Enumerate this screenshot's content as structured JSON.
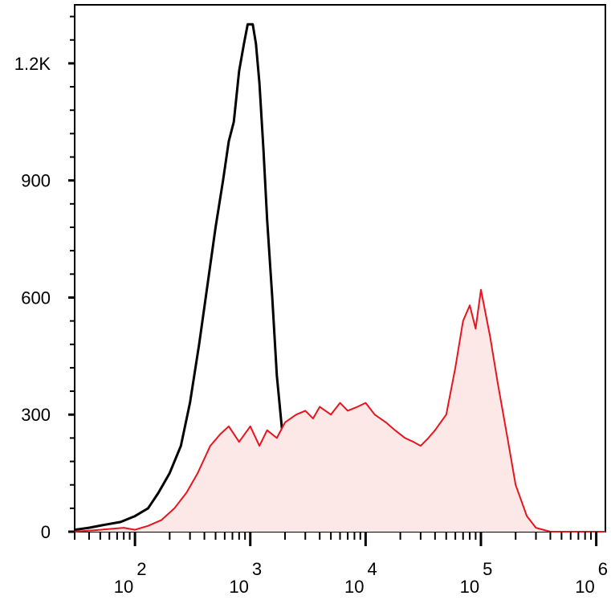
{
  "chart_data": {
    "type": "area",
    "title": "",
    "xlabel": "",
    "ylabel": "",
    "x_scale": "log",
    "xlim": [
      30,
      1200000
    ],
    "ylim": [
      0,
      1350
    ],
    "x_tick_labels": [
      {
        "base": "10",
        "exp": "2",
        "value": 100
      },
      {
        "base": "10",
        "exp": "3",
        "value": 1000
      },
      {
        "base": "10",
        "exp": "4",
        "value": 10000
      },
      {
        "base": "10",
        "exp": "5",
        "value": 100000
      },
      {
        "base": "10",
        "exp": "6",
        "value": 1000000
      }
    ],
    "y_ticks": [
      {
        "label": "0",
        "value": 0
      },
      {
        "label": "300",
        "value": 300
      },
      {
        "label": "600",
        "value": 600
      },
      {
        "label": "900",
        "value": 900
      },
      {
        "label": "1.2K",
        "value": 1200
      }
    ],
    "grid": false,
    "legend": "none",
    "series": [
      {
        "color": "#000000",
        "fill": "none",
        "points": [
          [
            30,
            5
          ],
          [
            40,
            10
          ],
          [
            55,
            18
          ],
          [
            75,
            25
          ],
          [
            100,
            40
          ],
          [
            130,
            60
          ],
          [
            160,
            100
          ],
          [
            200,
            150
          ],
          [
            250,
            220
          ],
          [
            300,
            330
          ],
          [
            360,
            480
          ],
          [
            420,
            620
          ],
          [
            500,
            780
          ],
          [
            580,
            900
          ],
          [
            650,
            1000
          ],
          [
            720,
            1050
          ],
          [
            800,
            1180
          ],
          [
            880,
            1250
          ],
          [
            950,
            1300
          ],
          [
            1050,
            1300
          ],
          [
            1120,
            1250
          ],
          [
            1200,
            1150
          ],
          [
            1300,
            980
          ],
          [
            1400,
            800
          ],
          [
            1550,
            600
          ],
          [
            1700,
            400
          ],
          [
            1900,
            250
          ],
          [
            2100,
            150
          ],
          [
            2400,
            80
          ],
          [
            2800,
            20
          ],
          [
            3200,
            0
          ]
        ]
      },
      {
        "color": "#e8141e",
        "fill": "#fde8e8",
        "points": [
          [
            30,
            0
          ],
          [
            50,
            5
          ],
          [
            80,
            10
          ],
          [
            100,
            5
          ],
          [
            130,
            15
          ],
          [
            170,
            30
          ],
          [
            220,
            60
          ],
          [
            280,
            100
          ],
          [
            350,
            150
          ],
          [
            450,
            220
          ],
          [
            550,
            250
          ],
          [
            650,
            270
          ],
          [
            800,
            230
          ],
          [
            1000,
            270
          ],
          [
            1200,
            220
          ],
          [
            1400,
            260
          ],
          [
            1700,
            240
          ],
          [
            2000,
            280
          ],
          [
            2500,
            300
          ],
          [
            3000,
            310
          ],
          [
            3500,
            290
          ],
          [
            4000,
            320
          ],
          [
            5000,
            300
          ],
          [
            6000,
            330
          ],
          [
            7000,
            310
          ],
          [
            8500,
            320
          ],
          [
            10000,
            330
          ],
          [
            12000,
            300
          ],
          [
            15000,
            280
          ],
          [
            18000,
            260
          ],
          [
            22000,
            240
          ],
          [
            26000,
            230
          ],
          [
            30000,
            220
          ],
          [
            35000,
            240
          ],
          [
            40000,
            260
          ],
          [
            50000,
            300
          ],
          [
            60000,
            420
          ],
          [
            70000,
            540
          ],
          [
            80000,
            580
          ],
          [
            90000,
            520
          ],
          [
            100000,
            620
          ],
          [
            120000,
            500
          ],
          [
            140000,
            380
          ],
          [
            170000,
            240
          ],
          [
            200000,
            120
          ],
          [
            250000,
            40
          ],
          [
            300000,
            10
          ],
          [
            400000,
            0
          ],
          [
            1200000,
            0
          ]
        ]
      }
    ]
  }
}
